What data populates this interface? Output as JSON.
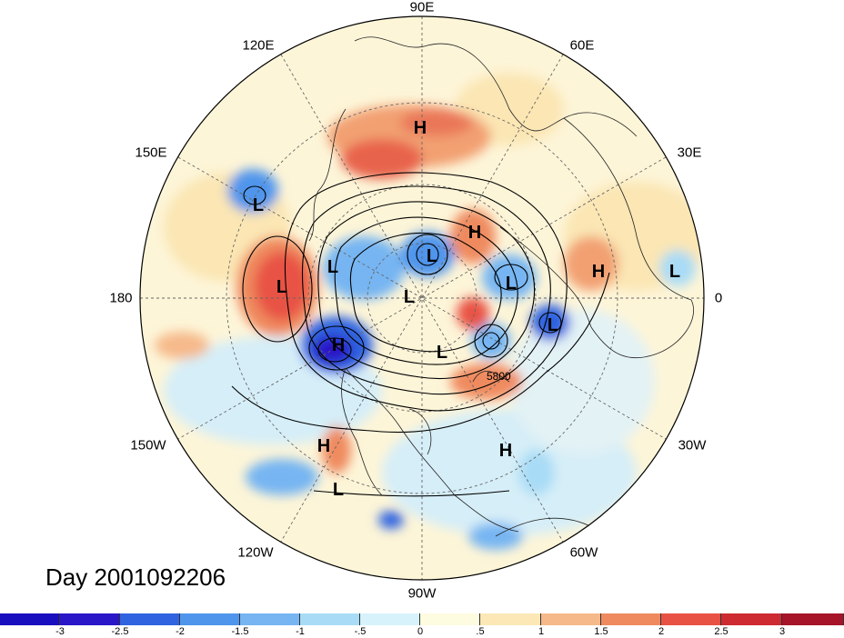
{
  "title": "Day 2001092206",
  "longitude_labels": {
    "top": "90E",
    "upper_left": "120E",
    "upper_right": "60E",
    "mid_left_upper": "150E",
    "mid_right_upper": "30E",
    "left": "180",
    "right": "0",
    "mid_left_lower": "150W",
    "mid_right_lower": "30W",
    "lower_left": "120W",
    "lower_right": "60W",
    "bottom": "90W"
  },
  "contour_label": "5800",
  "pressure_centers": [
    {
      "type": "H",
      "label": "H"
    },
    {
      "type": "L",
      "label": "L"
    },
    {
      "type": "H",
      "label": "H"
    },
    {
      "type": "L",
      "label": "L"
    },
    {
      "type": "L",
      "label": "L"
    },
    {
      "type": "L",
      "label": "L"
    },
    {
      "type": "L",
      "label": "L"
    },
    {
      "type": "L",
      "label": "L"
    },
    {
      "type": "H",
      "label": "H"
    },
    {
      "type": "L",
      "label": "L"
    },
    {
      "type": "L",
      "label": "L"
    },
    {
      "type": "H",
      "label": "H"
    },
    {
      "type": "L",
      "label": "L"
    },
    {
      "type": "H",
      "label": "H"
    },
    {
      "type": "H",
      "label": "H"
    },
    {
      "type": "L",
      "label": "L"
    }
  ],
  "colorbar": {
    "labels": [
      "-3",
      "-2.5",
      "-2",
      "-1.5",
      "-1",
      "-.5",
      "0",
      ".5",
      "1",
      "1.5",
      "2",
      "2.5",
      "3"
    ],
    "colors": [
      "#2a17c8",
      "#2f63e0",
      "#4f95ec",
      "#76b5f2",
      "#a8dcf6",
      "#d7f2fb",
      "#fdfbe0",
      "#fbe8b6",
      "#f6b98a",
      "#ef8a5e",
      "#e85244",
      "#cd2a32",
      "#a51428"
    ]
  },
  "legend_colors": {
    "positive": "#e8604a",
    "negative": "#3d84df",
    "neutral": "#fdf7da"
  }
}
